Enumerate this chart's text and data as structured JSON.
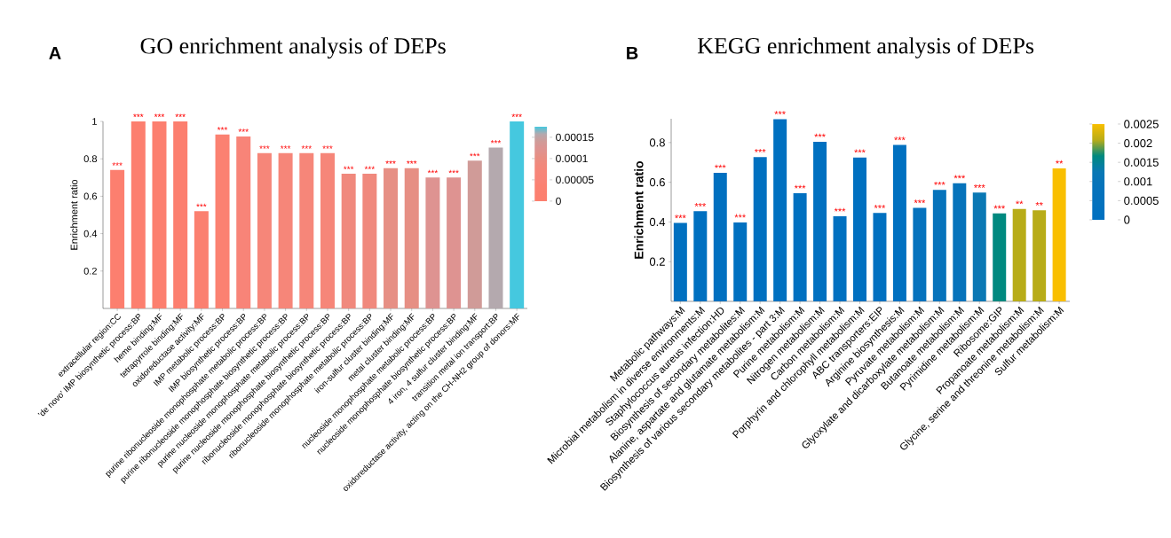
{
  "chart_data": [
    {
      "type": "bar",
      "title": "GO enrichment analysis of DEPs",
      "ylabel": "Enrichment ratio",
      "annotations": [
        "A"
      ],
      "categories": [
        "extracellular region:CC",
        "'de novo' IMP biosynthetic process:BP",
        "heme binding:MF",
        "tetrapyrrole binding:MF",
        "oxidoreductase activity:MF",
        "IMP metabolic process:BP",
        "IMP biosynthetic process:BP",
        "purine ribonucleoside monophosphate metabolic process:BP",
        "purine ribonucleoside monophosphate biosynthetic process:BP",
        "purine nucleoside monophosphate metabolic process:BP",
        "purine nucleoside monophosphate biosynthetic process:BP",
        "ribonucleoside monophosphate biosynthetic process:BP",
        "ribonucleoside monophosphate metabolic process:BP",
        "iron-sulfur cluster binding:MF",
        "metal cluster binding:MF",
        "nucleoside monophosphate metabolic process:BP",
        "nucleoside monophosphate biosynthetic process:BP",
        "4 iron, 4 sulfur cluster binding:MF",
        "transition metal ion transport:BP",
        "oxidoreductase activity, acting on the CH-NH2 group of donors:MF"
      ],
      "values": [
        0.74,
        1.0,
        1.0,
        1.0,
        0.52,
        0.93,
        0.92,
        0.83,
        0.83,
        0.83,
        0.83,
        0.72,
        0.72,
        0.75,
        0.75,
        0.7,
        0.7,
        0.79,
        0.86,
        1.0
      ],
      "colors": [
        "#fc7f6f",
        "#fc7f6f",
        "#fc7f6f",
        "#fc7f6f",
        "#fb8070",
        "#fb8171",
        "#f88478",
        "#f68679",
        "#f68679",
        "#f68679",
        "#f68679",
        "#f0897d",
        "#f0897d",
        "#e68f84",
        "#e68f84",
        "#de9391",
        "#de9391",
        "#d09b98",
        "#b4a9ae",
        "#45c8df"
      ],
      "value_labels": [
        "***",
        "***",
        "***",
        "***",
        "***",
        "***",
        "***",
        "***",
        "***",
        "***",
        "***",
        "***",
        "***",
        "***",
        "***",
        "***",
        "***",
        "***",
        "***",
        "***"
      ],
      "ylim": [
        0,
        1
      ],
      "yticks": [
        0.2,
        0.4,
        0.6,
        0.8,
        1
      ],
      "clim": [
        0,
        0.000175
      ],
      "cticks": [
        0,
        {
          "value": 5e-05,
          "label": "0.00005"
        },
        0.0001,
        0.00015
      ]
    },
    {
      "type": "bar",
      "title": "KEGG enrichment analysis  of DEPs",
      "ylabel": "Enrichment ratio",
      "annotations": [
        "B"
      ],
      "categories": [
        "Metabolic pathways:M",
        "Microbial metabolism in diverse environments:M",
        "Staphylococcus aureus infection:HD",
        "Biosynthesis of secondary metabolites:M",
        "Alanine, aspartate and glutamate metabolism:M",
        "Biosynthesis of various secondary metabolites - part 3:M",
        "Purine metabolism:M",
        "Nitrogen metabolism:M",
        "Carbon metabolism:M",
        "Porphyrin and chlorophyll metabolism:M",
        "ABC transporters:EIP",
        "Arginine biosynthesis:M",
        "Pyruvate metabolism:M",
        "Glyoxylate and dicarboxylate metabolism:M",
        "Butanoate metabolism:M",
        "Pyrimidine metabolism:M",
        "Ribosome:GIP",
        "Propanoate metabolism:M",
        "Glycine, serine and threonine metabolism:M",
        "Sulfur metabolism:M"
      ],
      "values": [
        0.395,
        0.454,
        0.648,
        0.398,
        0.727,
        0.918,
        0.545,
        0.804,
        0.429,
        0.725,
        0.445,
        0.788,
        0.471,
        0.562,
        0.595,
        0.548,
        0.443,
        0.466,
        0.459,
        0.67
      ],
      "colors": [
        "#0070c0",
        "#0070c0",
        "#0070c0",
        "#0070c0",
        "#0070c0",
        "#0070c0",
        "#0070c0",
        "#0070c0",
        "#0070c0",
        "#0070c0",
        "#0070c0",
        "#0070c0",
        "#0572bd",
        "#0673bb",
        "#0673bb",
        "#0a78b4",
        "#00897f",
        "#b8ac18",
        "#b8ac18",
        "#f9bf00"
      ],
      "value_labels": [
        "***",
        "***",
        "***",
        "***",
        "***",
        "***",
        "***",
        "***",
        "***",
        "***",
        "***",
        "***",
        "***",
        "***",
        "***",
        "***",
        "***",
        "**",
        "**",
        "**"
      ],
      "ylim": [
        0,
        0.92
      ],
      "yticks": [
        0.2,
        0.4,
        0.6,
        0.8
      ],
      "clim": [
        0,
        0.0025
      ],
      "cticks": [
        0,
        0.0005,
        0.001,
        0.0015,
        0.002,
        0.0025
      ]
    }
  ]
}
